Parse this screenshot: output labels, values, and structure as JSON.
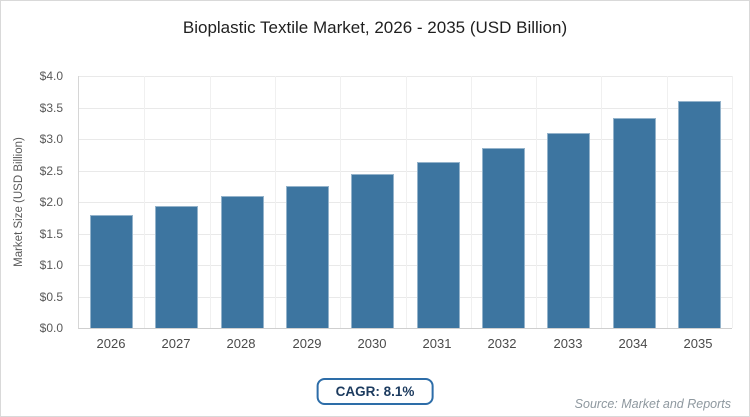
{
  "chart_data": {
    "type": "bar",
    "title": "Bioplastic Textile Market, 2026 - 2035 (USD Billion)",
    "ylabel": "Market Size (USD Billion)",
    "xlabel": "",
    "categories": [
      "2026",
      "2027",
      "2028",
      "2029",
      "2030",
      "2031",
      "2032",
      "2033",
      "2034",
      "2035"
    ],
    "values": [
      1.79,
      1.94,
      2.09,
      2.26,
      2.44,
      2.64,
      2.86,
      3.09,
      3.34,
      3.61
    ],
    "ylim": [
      0,
      4.0
    ],
    "ytick_step": 0.5,
    "ytick_labels": [
      "$0.0",
      "$0.5",
      "$1.0",
      "$1.5",
      "$2.0",
      "$2.5",
      "$3.0",
      "$3.5",
      "$4.0"
    ],
    "grid": true,
    "legend": "none",
    "bar_color": "#3d75a0"
  },
  "footer": {
    "cagr_label": "CAGR: 8.1%",
    "source": "Source: Market and Reports"
  },
  "colors": {
    "bar": "#3d75a0",
    "badge_border": "#2d6da8",
    "badge_text": "#1b3a5e",
    "grid_h": "#e9e9e9",
    "grid_v": "#f0f0f0",
    "axis_text": "#595959"
  }
}
